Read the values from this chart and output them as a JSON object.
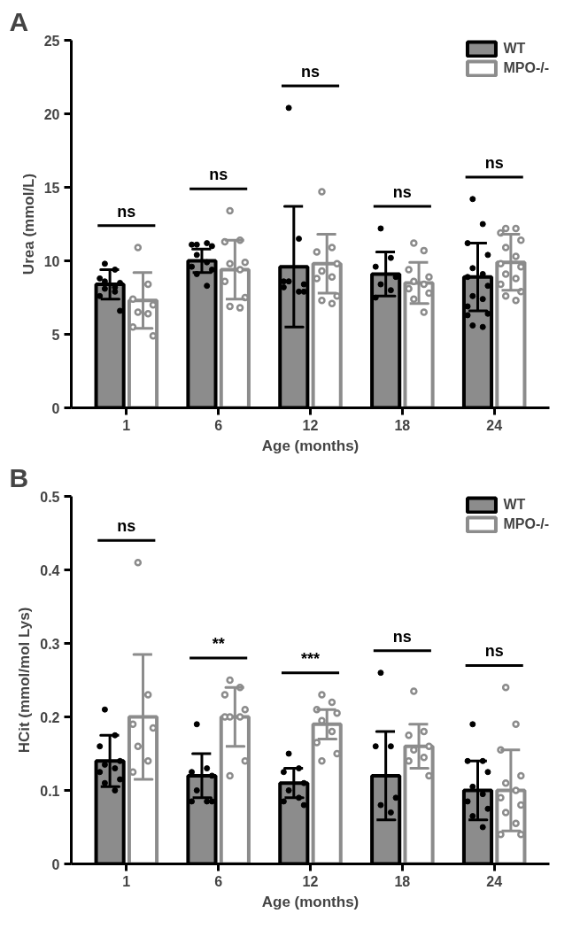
{
  "chart_data": [
    {
      "type": "bar",
      "annotations": [
        "A",
        "ns",
        "ns",
        "ns",
        "ns",
        "ns"
      ],
      "xlabel": "Age (months)",
      "ylabel": "Urea (mmol/L)",
      "categories": [
        "1",
        "6",
        "12",
        "18",
        "24"
      ],
      "ylim": [
        0,
        25
      ],
      "yticks": [
        0,
        5,
        10,
        15,
        20,
        25
      ],
      "grid": false,
      "legend": "top right",
      "marker": "circle",
      "series": [
        {
          "name": "WT",
          "color": "#8c8c8c",
          "values": [
            8.4,
            10.0,
            9.6,
            9.1,
            8.9
          ],
          "errors": [
            1.0,
            0.8,
            4.1,
            1.5,
            2.3
          ]
        },
        {
          "name": "MPO-/-",
          "color": "#8c8c8c",
          "values": [
            7.3,
            9.4,
            9.8,
            8.5,
            9.9
          ],
          "errors": [
            1.9,
            2.0,
            2.0,
            1.4,
            1.9
          ]
        },
        {
          "type": "scatter",
          "color": "#000000",
          "x": [
            "1",
            "1",
            "1",
            "1",
            "1",
            "1",
            "1",
            "1",
            "1",
            "1",
            "6",
            "6",
            "6",
            "6",
            "6",
            "6",
            "6",
            "6",
            "6",
            "6",
            "12",
            "12",
            "12",
            "12",
            "12",
            "12",
            "12",
            "12",
            "18",
            "18",
            "18",
            "18",
            "18",
            "18",
            "18",
            "24",
            "24",
            "24",
            "24",
            "24",
            "24",
            "24",
            "24",
            "24",
            "24",
            "24",
            "24",
            "24",
            "24",
            "24"
          ],
          "values": [
            9.8,
            9.4,
            8.8,
            8.5,
            8.1,
            7.9,
            7.6,
            6.6,
            8.6,
            8.2,
            11.1,
            11.2,
            11.1,
            11.0,
            10.4,
            9.9,
            9.6,
            9.4,
            9.1,
            8.3,
            20.4,
            11.5,
            8.6,
            8.4,
            8.6,
            7.9,
            8.2,
            7.9,
            12.2,
            10.2,
            9.6,
            8.9,
            8.4,
            8.0,
            7.5,
            14.2,
            12.5,
            11.2,
            10.4,
            9.5,
            9.1,
            8.9,
            8.3,
            7.6,
            7.4,
            6.9,
            6.4,
            5.6,
            5.5,
            6.3
          ]
        },
        {
          "type": "scatter",
          "color": "#8c8c8c",
          "x": [
            "1",
            "1",
            "1",
            "1",
            "1",
            "1",
            "1",
            "1",
            "6",
            "6",
            "6",
            "6",
            "6",
            "6",
            "6",
            "6",
            "6",
            "6",
            "12",
            "12",
            "12",
            "12",
            "12",
            "12",
            "12",
            "12",
            "12",
            "12",
            "18",
            "18",
            "18",
            "18",
            "18",
            "18",
            "18",
            "18",
            "18",
            "18",
            "24",
            "24",
            "24",
            "24",
            "24",
            "24",
            "24",
            "24",
            "24",
            "24",
            "24",
            "24",
            "24",
            "24"
          ],
          "values": [
            10.9,
            8.4,
            7.4,
            7.0,
            6.5,
            6.4,
            5.5,
            4.9,
            13.4,
            11.4,
            11.3,
            9.9,
            9.8,
            9.4,
            8.6,
            7.5,
            6.9,
            6.8,
            14.7,
            10.9,
            10.6,
            9.8,
            9.3,
            8.9,
            8.8,
            7.6,
            7.3,
            7.1,
            11.2,
            10.7,
            9.4,
            8.9,
            8.6,
            8.4,
            8.1,
            7.8,
            7.4,
            6.5,
            12.2,
            12.2,
            11.9,
            11.4,
            10.9,
            10.3,
            9.8,
            9.6,
            9.1,
            8.8,
            8.4,
            7.9,
            7.6,
            7.3
          ]
        }
      ]
    },
    {
      "type": "bar",
      "annotations": [
        "B",
        "ns",
        "**",
        "***",
        "ns",
        "ns"
      ],
      "xlabel": "Age (months)",
      "ylabel": "HCit (mmol/mol Lys)",
      "categories": [
        "1",
        "6",
        "12",
        "18",
        "24"
      ],
      "ylim": [
        0,
        0.5
      ],
      "yticks": [
        0,
        0.1,
        0.2,
        0.3,
        0.4,
        0.5
      ],
      "grid": false,
      "legend": "top right",
      "marker": "circle",
      "series": [
        {
          "name": "WT",
          "color": "#8c8c8c",
          "values": [
            0.14,
            0.12,
            0.11,
            0.12,
            0.1
          ],
          "errors": [
            0.035,
            0.03,
            0.02,
            0.06,
            0.04
          ]
        },
        {
          "name": "MPO-/-",
          "color": "#8c8c8c",
          "values": [
            0.2,
            0.2,
            0.19,
            0.16,
            0.1
          ],
          "errors": [
            0.085,
            0.04,
            0.02,
            0.03,
            0.055
          ]
        },
        {
          "type": "scatter",
          "color": "#000000",
          "x": [
            "1",
            "1",
            "1",
            "1",
            "1",
            "1",
            "1",
            "1",
            "1",
            "1",
            "6",
            "6",
            "6",
            "6",
            "6",
            "6",
            "6",
            "6",
            "12",
            "12",
            "12",
            "12",
            "12",
            "12",
            "12",
            "12",
            "18",
            "18",
            "18",
            "18",
            "18",
            "18",
            "24",
            "24",
            "24",
            "24",
            "24",
            "24",
            "24",
            "24",
            "24",
            "24"
          ],
          "values": [
            0.21,
            0.175,
            0.16,
            0.14,
            0.135,
            0.13,
            0.125,
            0.115,
            0.11,
            0.1,
            0.19,
            0.13,
            0.125,
            0.12,
            0.1,
            0.085,
            0.085,
            0.085,
            0.15,
            0.13,
            0.125,
            0.11,
            0.1,
            0.09,
            0.085,
            0.08,
            0.26,
            0.16,
            0.16,
            0.09,
            0.08,
            0.07,
            0.19,
            0.14,
            0.14,
            0.125,
            0.105,
            0.095,
            0.085,
            0.075,
            0.065,
            0.05
          ]
        },
        {
          "type": "scatter",
          "color": "#8c8c8c",
          "x": [
            "1",
            "1",
            "1",
            "1",
            "1",
            "1",
            "1",
            "6",
            "6",
            "6",
            "6",
            "6",
            "6",
            "6",
            "6",
            "6",
            "12",
            "12",
            "12",
            "12",
            "12",
            "12",
            "12",
            "12",
            "12",
            "18",
            "18",
            "18",
            "18",
            "18",
            "18",
            "18",
            "18",
            "24",
            "24",
            "24",
            "24",
            "24",
            "24",
            "24",
            "24",
            "24",
            "24",
            "24",
            "24"
          ],
          "values": [
            0.41,
            0.23,
            0.19,
            0.185,
            0.16,
            0.14,
            0.125,
            0.25,
            0.24,
            0.23,
            0.21,
            0.2,
            0.2,
            0.2,
            0.14,
            0.12,
            0.23,
            0.22,
            0.21,
            0.205,
            0.195,
            0.18,
            0.165,
            0.15,
            0.14,
            0.235,
            0.18,
            0.175,
            0.16,
            0.155,
            0.145,
            0.14,
            0.12,
            0.24,
            0.19,
            0.155,
            0.12,
            0.11,
            0.1,
            0.09,
            0.08,
            0.07,
            0.055,
            0.04,
            0.04
          ]
        }
      ]
    }
  ]
}
